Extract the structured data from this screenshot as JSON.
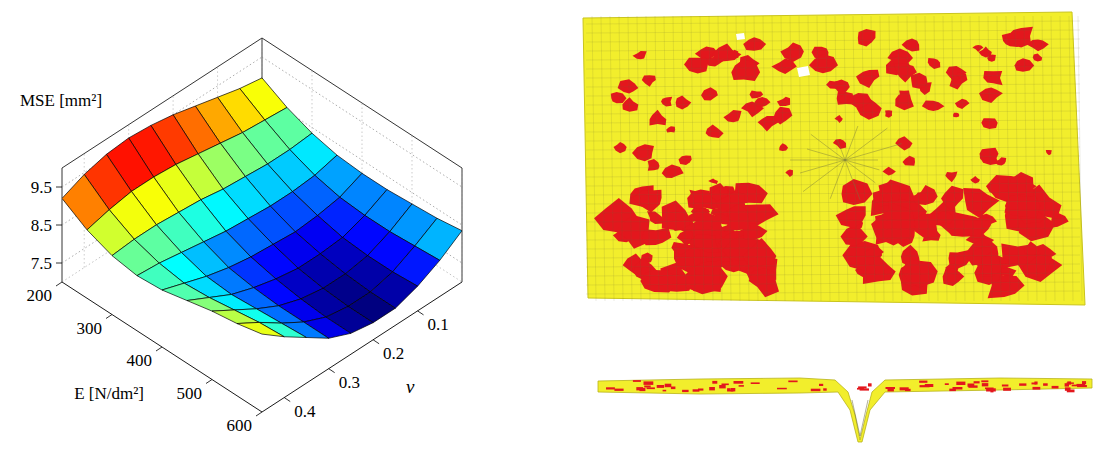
{
  "chart_data": {
    "type": "surface",
    "x_label": "E [N/dm²]",
    "y_label": "ν",
    "z_label": "MSE [mm²]",
    "x": [
      200,
      250,
      300,
      350,
      400,
      450,
      500,
      550,
      600
    ],
    "y": [
      0.0,
      0.05,
      0.1,
      0.15,
      0.2,
      0.25,
      0.3,
      0.35,
      0.4,
      0.45
    ],
    "z": [
      [
        8.95,
        9.05,
        9.2,
        9.35,
        9.5,
        9.6,
        9.65,
        9.6,
        9.45,
        9.2
      ],
      [
        8.6,
        8.65,
        8.7,
        8.8,
        8.9,
        9.0,
        9.05,
        9.05,
        8.95,
        8.8
      ],
      [
        8.35,
        8.3,
        8.3,
        8.35,
        8.4,
        8.5,
        8.55,
        8.6,
        8.6,
        8.55
      ],
      [
        8.2,
        8.05,
        8.0,
        8.0,
        8.05,
        8.1,
        8.2,
        8.3,
        8.4,
        8.45
      ],
      [
        8.15,
        7.9,
        7.8,
        7.75,
        7.8,
        7.85,
        7.95,
        8.1,
        8.3,
        8.5
      ],
      [
        8.15,
        7.85,
        7.65,
        7.6,
        7.6,
        7.7,
        7.85,
        8.05,
        8.35,
        8.65
      ],
      [
        8.2,
        7.85,
        7.6,
        7.5,
        7.5,
        7.6,
        7.8,
        8.1,
        8.45,
        8.8
      ],
      [
        8.25,
        7.9,
        7.6,
        7.45,
        7.45,
        7.55,
        7.8,
        8.15,
        8.55,
        8.9
      ],
      [
        8.35,
        7.95,
        7.65,
        7.45,
        7.45,
        7.55,
        7.8,
        8.2,
        8.6,
        9.05
      ]
    ],
    "xlim": [
      200,
      600
    ],
    "xticks": [
      200,
      300,
      400,
      500,
      600
    ],
    "ylim": [
      0,
      0.45
    ],
    "yticks": [
      0.1,
      0.2,
      0.3,
      0.4
    ],
    "zlim": [
      7,
      10
    ],
    "zticks": [
      7.5,
      8.5,
      9.5
    ],
    "grid": true
  }
}
